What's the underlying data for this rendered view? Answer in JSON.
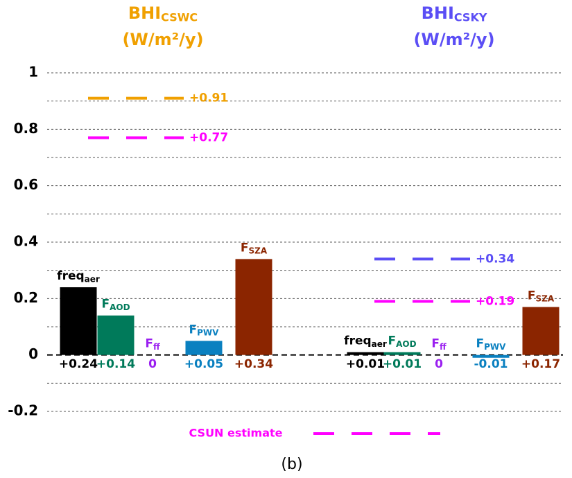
{
  "chart_data": {
    "type": "bar",
    "ylim": [
      -0.2,
      1
    ],
    "yticks": [
      -0.2,
      0,
      0.2,
      0.4,
      0.6,
      0.8,
      1
    ],
    "minor_yticks": [
      -0.1,
      0.1,
      0.3,
      0.5,
      0.7,
      0.9
    ],
    "grid": true,
    "groups": [
      {
        "title": "BHI",
        "title_subscript": "CSWC",
        "title_unit": "(W/m²/y)",
        "title_color": "#f0a000",
        "categories": [
          "freq",
          "F",
          "F",
          "F",
          "F"
        ],
        "category_subscripts": [
          "aer",
          "AOD",
          "ff",
          "PWV",
          "SZA"
        ],
        "colors": [
          "#000000",
          "#007a5a",
          "#9a1ff0",
          "#0a80c0",
          "#8b2500"
        ],
        "values": [
          0.24,
          0.14,
          0,
          0.05,
          0.34
        ],
        "value_labels": [
          "+0.24",
          "+0.14",
          "0",
          "+0.05",
          "+0.34"
        ],
        "reference_lines": [
          {
            "value": 0.91,
            "label": "+0.91",
            "color": "#f0a000"
          },
          {
            "value": 0.77,
            "label": "+0.77",
            "color": "#ff00ff"
          }
        ]
      },
      {
        "title": "BHI",
        "title_subscript": "CSKY",
        "title_unit": "(W/m²/y)",
        "title_color": "#5b4ef5",
        "categories": [
          "freq",
          "F",
          "F",
          "F",
          "F"
        ],
        "category_subscripts": [
          "aer",
          "AOD",
          "ff",
          "PWV",
          "SZA"
        ],
        "colors": [
          "#000000",
          "#007a5a",
          "#9a1ff0",
          "#0a80c0",
          "#8b2500"
        ],
        "values": [
          0.01,
          0.01,
          0,
          -0.01,
          0.17
        ],
        "value_labels": [
          "+0.01",
          "+0.01",
          "0",
          "-0.01",
          "+0.17"
        ],
        "reference_lines": [
          {
            "value": 0.34,
            "label": "+0.34",
            "color": "#5b4ef5"
          },
          {
            "value": 0.19,
            "label": "+0.19",
            "color": "#ff00ff"
          }
        ]
      }
    ],
    "legend": [
      {
        "name": "CSUN estimate",
        "color": "#ff00ff"
      }
    ],
    "caption": "(b)"
  }
}
